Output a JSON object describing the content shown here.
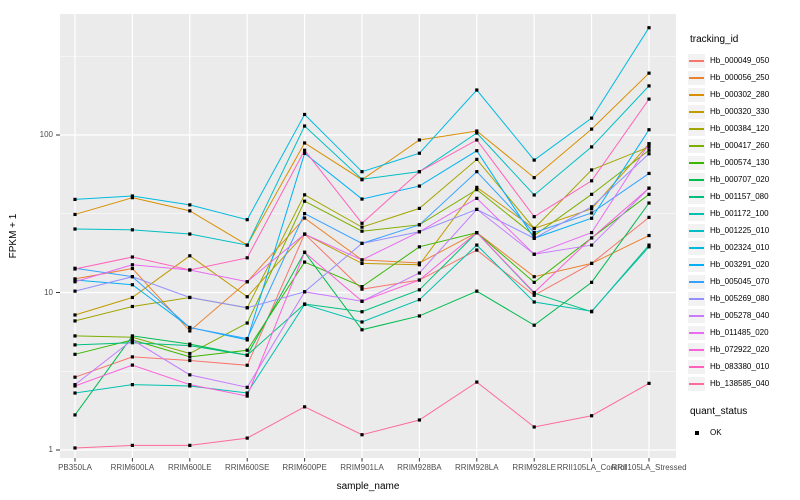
{
  "figure": {
    "background": "#FFFFFF",
    "panel_bg": "#EBEBEB",
    "grid_color": "#FFFFFF",
    "tick_color": "#333333",
    "tick_label_color": "#4D4D4D",
    "marker_color": "#000000"
  },
  "chart_data": {
    "type": "line",
    "title": "",
    "xlabel": "sample_name",
    "ylabel": "FPKM + 1",
    "y_scale": "log10",
    "ylim": [
      0.9,
      580
    ],
    "grid": "on",
    "legend_position": "right",
    "legend_title": "tracking_id",
    "y_ticks": [
      1,
      10,
      100
    ],
    "y_tick_labels": [
      "1",
      "10",
      "100"
    ],
    "y_minor_ticks": [
      3.1623,
      31.623,
      316.23
    ],
    "x_categories": [
      "PB350LA",
      "RRIM600LA",
      "RRIM600LE",
      "RRIM600SE",
      "RRIM600PE",
      "RRIM901LA",
      "RRIM928BA",
      "RRIM928LA",
      "RRIM928LE",
      "RRII105LA_Control",
      "RRII105LA_Stressed"
    ],
    "marker": "square",
    "series": [
      {
        "name": "Hb_000049_050",
        "color": "#F8766D",
        "values": [
          2.9,
          3.9,
          3.7,
          3.45,
          23.5,
          10.5,
          12.0,
          18.6,
          9.6,
          15.3,
          30
        ]
      },
      {
        "name": "Hb_000056_250",
        "color": "#EA8331",
        "values": [
          12.2,
          14.2,
          5.7,
          11.7,
          29.7,
          16.1,
          15.4,
          24,
          12.6,
          15.3,
          23
        ]
      },
      {
        "name": "Hb_000302_280",
        "color": "#D89000",
        "values": [
          31.3,
          40,
          33,
          20,
          89,
          52,
          93,
          106,
          53.6,
          109,
          247
        ]
      },
      {
        "name": "Hb_000320_330",
        "color": "#C09B00",
        "values": [
          7.2,
          9.3,
          17.1,
          9.4,
          23.5,
          15.3,
          15,
          46.5,
          25.5,
          34,
          88
        ]
      },
      {
        "name": "Hb_000384_120",
        "color": "#A3A500",
        "values": [
          6.6,
          8.15,
          9.3,
          8.0,
          41.7,
          26,
          34.2,
          70,
          25.5,
          60,
          84
        ]
      },
      {
        "name": "Hb_000417_260",
        "color": "#7CAE00",
        "values": [
          5.3,
          5.2,
          4.1,
          6.4,
          38,
          24.5,
          26.9,
          45,
          23,
          42,
          80
        ]
      },
      {
        "name": "Hb_000574_130",
        "color": "#39B600",
        "values": [
          4.05,
          5.0,
          3.9,
          4.3,
          15.6,
          10.9,
          19.5,
          24,
          11.6,
          22.2,
          42
        ]
      },
      {
        "name": "Hb_000707_020",
        "color": "#00BB4E",
        "values": [
          1.67,
          5.3,
          4.7,
          4.0,
          18,
          5.8,
          7.1,
          10.2,
          6.2,
          11.6,
          37
        ]
      },
      {
        "name": "Hb_001157_080",
        "color": "#00BF7D",
        "values": [
          4.65,
          4.8,
          4.6,
          4.0,
          8.45,
          7.55,
          10.4,
          24,
          9.9,
          7.55,
          20
        ]
      },
      {
        "name": "Hb_001172_100",
        "color": "#00C0AF",
        "values": [
          2.3,
          2.6,
          2.55,
          2.3,
          8.4,
          6.5,
          9.0,
          20,
          8.7,
          7.6,
          19.5
        ]
      },
      {
        "name": "Hb_001225_010",
        "color": "#00BFC4",
        "values": [
          25.3,
          25,
          23.5,
          20,
          114,
          52.4,
          58.5,
          103,
          41.6,
          84,
          205
        ]
      },
      {
        "name": "Hb_002324_010",
        "color": "#00BAE0",
        "values": [
          39,
          41,
          36,
          29,
          135,
          58.5,
          76.6,
          193,
          69.3,
          128,
          480
        ]
      },
      {
        "name": "Hb_003291_020",
        "color": "#00B0F6",
        "values": [
          12,
          11.2,
          6.0,
          5.0,
          76.5,
          39.2,
          47.4,
          79.5,
          22.1,
          29.6,
          108
        ]
      },
      {
        "name": "Hb_005045_070",
        "color": "#35A2FF",
        "values": [
          14.25,
          12.6,
          5.98,
          5.1,
          31.7,
          20.5,
          26.9,
          58.5,
          24,
          32,
          57
        ]
      },
      {
        "name": "Hb_005269_080",
        "color": "#9590FF",
        "values": [
          10.2,
          12.6,
          9.3,
          8.0,
          10.1,
          20.5,
          24.3,
          33.7,
          22.1,
          35,
          76
        ]
      },
      {
        "name": "Hb_005278_040",
        "color": "#C77CFF",
        "values": [
          2.6,
          5.0,
          3.0,
          2.5,
          10.1,
          8.8,
          13.3,
          33.7,
          17.5,
          20,
          46
        ]
      },
      {
        "name": "Hb_011485_020",
        "color": "#E76BF3",
        "values": [
          11.7,
          15,
          13.9,
          11.7,
          23.5,
          16.1,
          24.3,
          39.6,
          17.5,
          24,
          88
        ]
      },
      {
        "name": "Hb_072922_020",
        "color": "#FA62DB",
        "values": [
          2.55,
          3.46,
          2.6,
          2.2,
          18,
          8.8,
          12,
          24,
          10,
          22.2,
          46
        ]
      },
      {
        "name": "Hb_083380_010",
        "color": "#FF62BC",
        "values": [
          14.1,
          16.8,
          13.9,
          16.6,
          80,
          27.5,
          58.5,
          93,
          30.3,
          51.2,
          169
        ]
      },
      {
        "name": "Hb_138585_040",
        "color": "#FF6A98",
        "values": [
          1.03,
          1.07,
          1.07,
          1.19,
          1.88,
          1.25,
          1.55,
          2.7,
          1.4,
          1.65,
          2.65
        ]
      }
    ],
    "legend2": {
      "title": "quant_status",
      "items": [
        {
          "label": "OK",
          "marker": "square"
        }
      ]
    }
  }
}
